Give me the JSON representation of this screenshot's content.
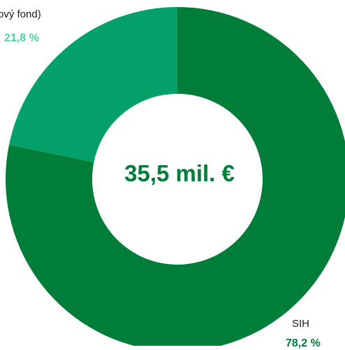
{
  "chart_data": {
    "type": "pie",
    "donut": true,
    "center_label": "35,5 mil. €",
    "legend": "none",
    "slices": [
      {
        "name": "SIH",
        "value_label": "78,2 %",
        "value": 78.2,
        "color": "#017d3a",
        "label_color": "#017d3a"
      },
      {
        "name": "ový fond)",
        "value_label": "21,8 %",
        "value": 21.8,
        "color": "#03a06a",
        "label_color": "#4cd39e"
      }
    ]
  }
}
